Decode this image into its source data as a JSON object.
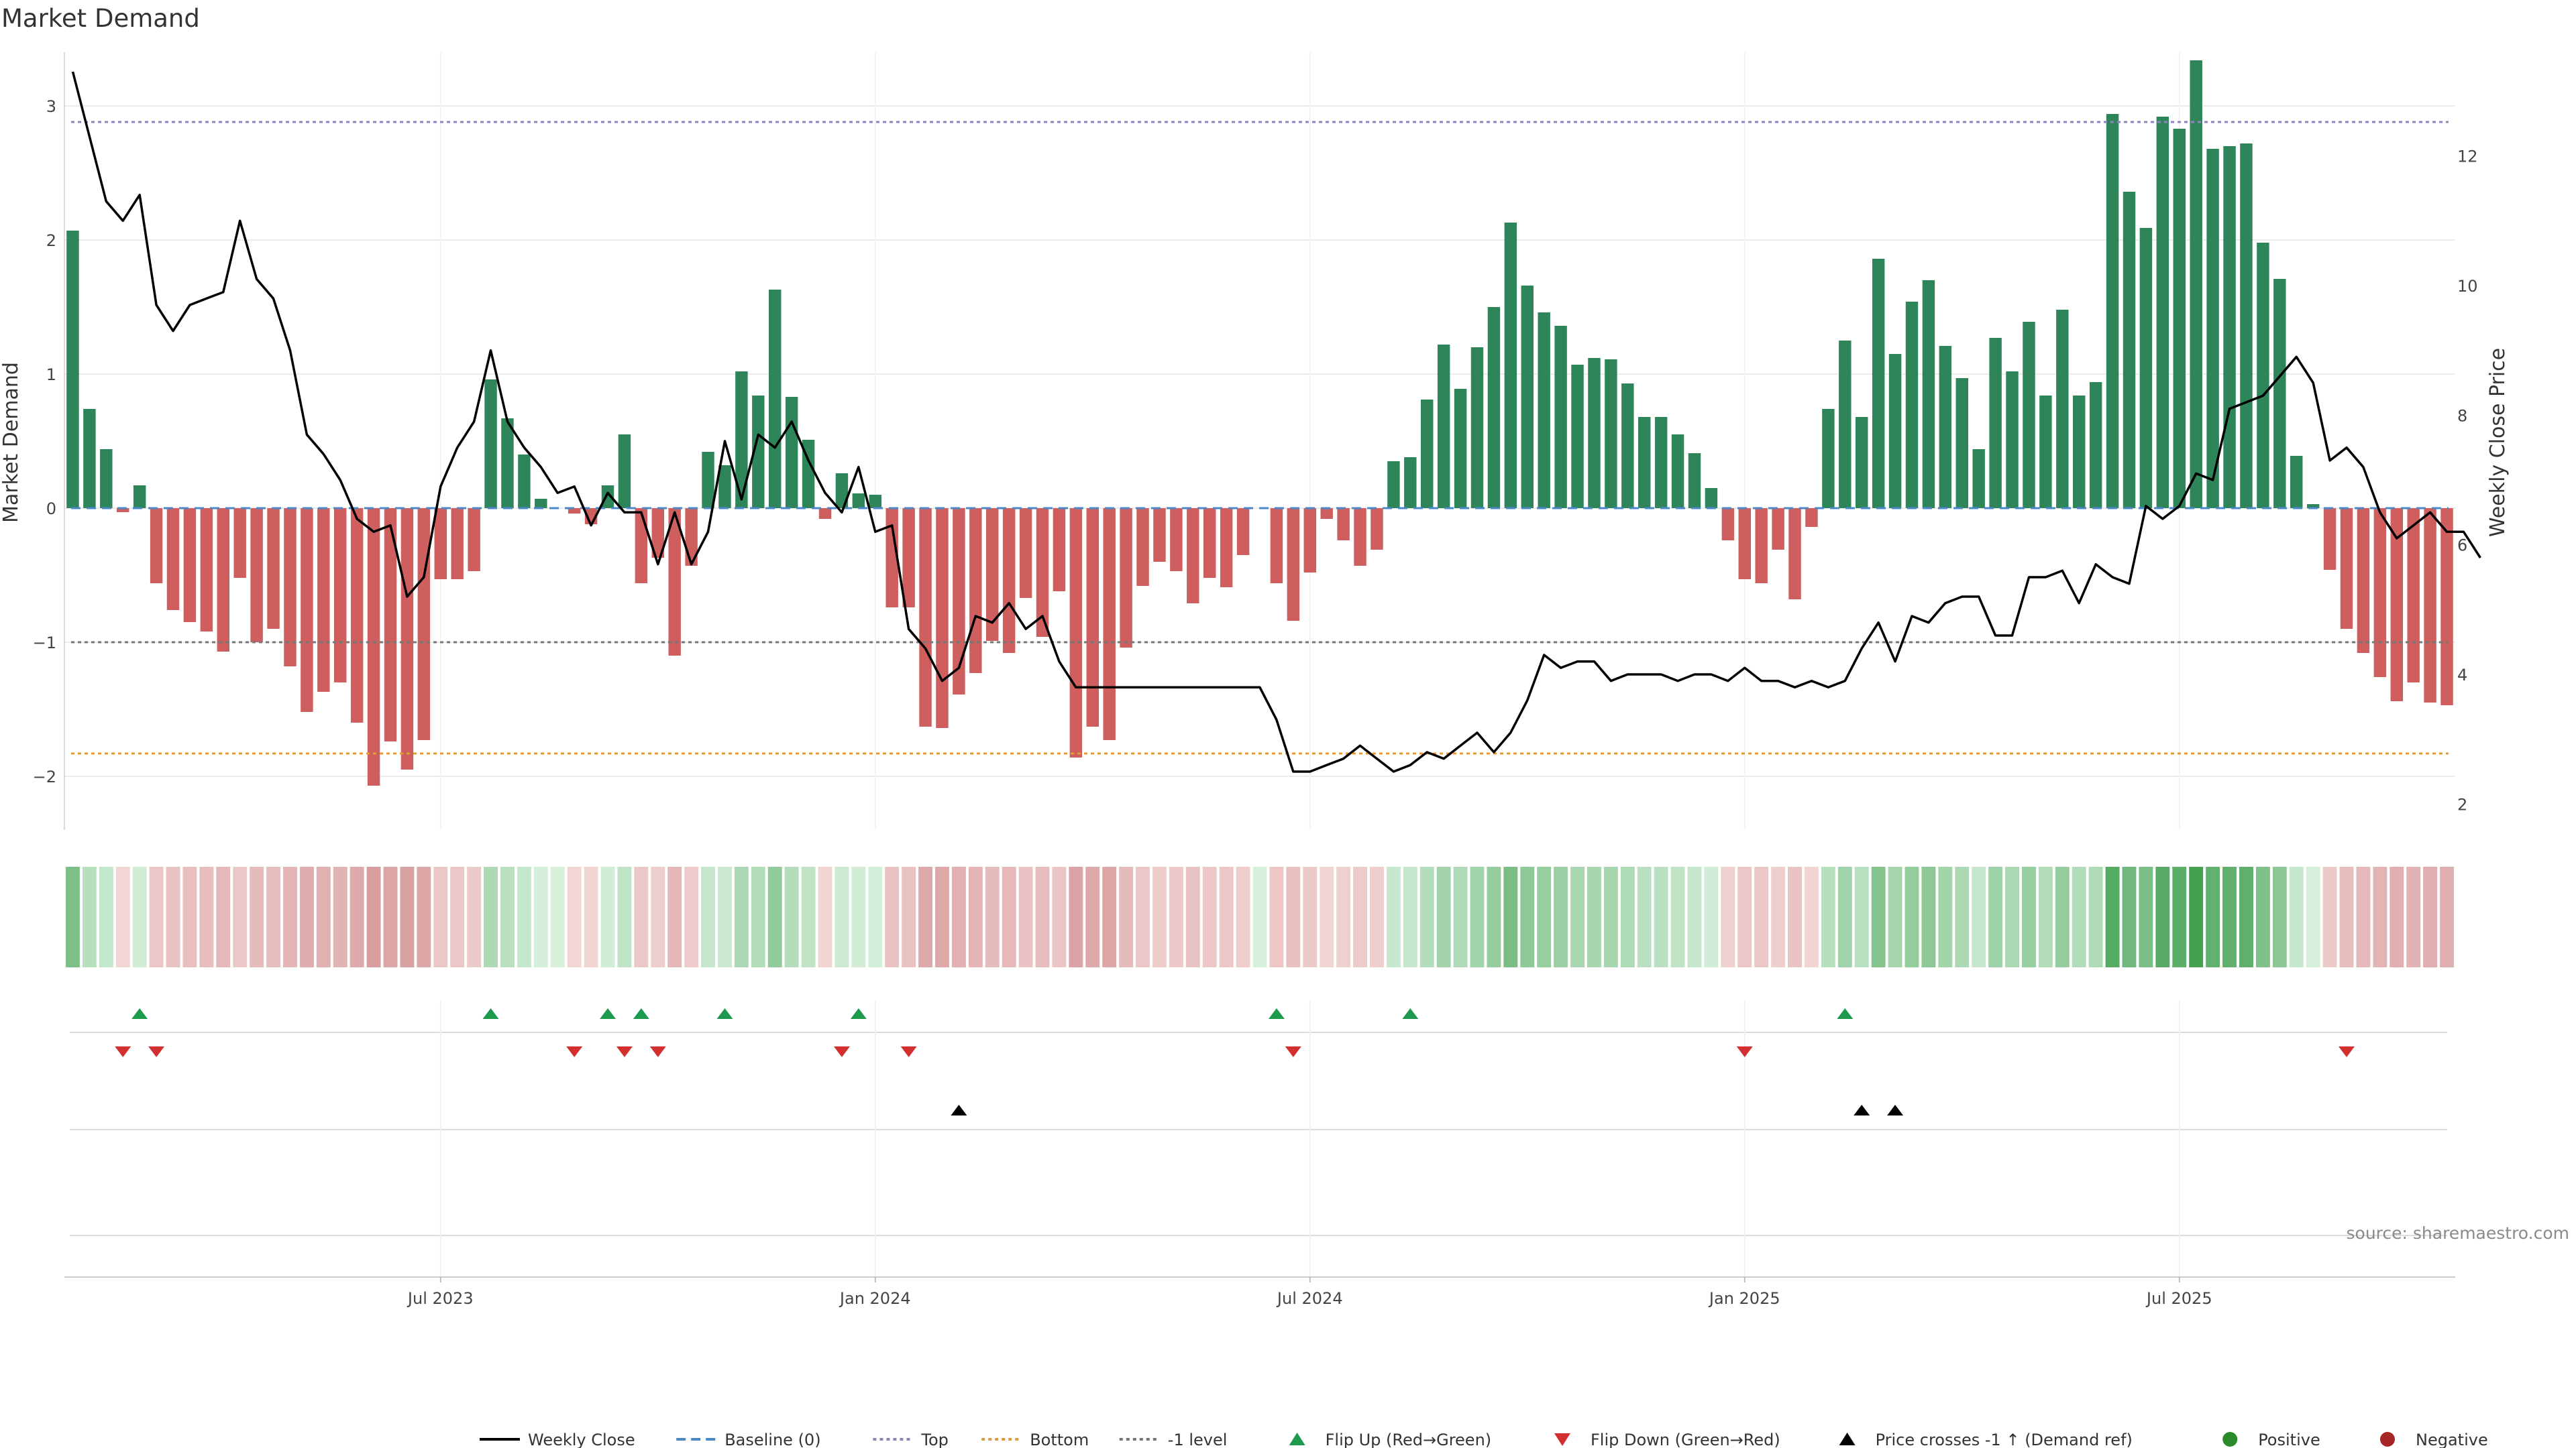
{
  "chart_data": {
    "type": "bar",
    "title": "Market Demand",
    "ylabel": "Market Demand",
    "y2label": "Weekly Close Price",
    "ylim": [
      -2.4,
      3.4
    ],
    "yticks": [
      -2,
      -1,
      0,
      1,
      2,
      3
    ],
    "y2lim": [
      1.6,
      13.6
    ],
    "y2ticks": [
      2,
      4,
      6,
      8,
      10,
      12
    ],
    "xticks": [
      "Jul 2023",
      "Jan 2024",
      "Jul 2024",
      "Jan 2025",
      "Jul 2025"
    ],
    "xtick_index": [
      22,
      48,
      74,
      100,
      126
    ],
    "reference_lines": {
      "top": 2.88,
      "bottom": -1.83,
      "minus_one": -1.0,
      "baseline": 0
    },
    "demand": [
      2.07,
      0.74,
      0.44,
      -0.03,
      0.17,
      -0.56,
      -0.76,
      -0.85,
      -0.92,
      -1.07,
      -0.52,
      -1.0,
      -0.9,
      -1.18,
      -1.52,
      -1.37,
      -1.3,
      -1.6,
      -2.07,
      -1.74,
      -1.95,
      -1.73,
      -0.53,
      -0.53,
      -0.47,
      0.96,
      0.67,
      0.4,
      0.07,
      0,
      -0.04,
      -0.12,
      0.17,
      0.55,
      -0.56,
      -0.37,
      -1.1,
      -0.43,
      0.42,
      0.32,
      1.02,
      0.84,
      1.63,
      0.83,
      0.51,
      -0.08,
      0.26,
      0.11,
      0.1,
      -0.74,
      -0.74,
      -1.63,
      -1.64,
      -1.39,
      -1.23,
      -0.99,
      -1.08,
      -0.67,
      -0.96,
      -0.62,
      -1.86,
      -1.63,
      -1.73,
      -1.04,
      -0.58,
      -0.4,
      -0.47,
      -0.71,
      -0.52,
      -0.59,
      -0.35,
      0,
      -0.56,
      -0.84,
      -0.48,
      -0.08,
      -0.24,
      -0.43,
      -0.31,
      0.35,
      0.38,
      0.81,
      1.22,
      0.89,
      1.2,
      1.5,
      2.13,
      1.66,
      1.46,
      1.36,
      1.07,
      1.12,
      1.11,
      0.93,
      0.68,
      0.68,
      0.55,
      0.41,
      0.15,
      -0.24,
      -0.53,
      -0.56,
      -0.31,
      -0.68,
      -0.14,
      0.74,
      1.25,
      0.68,
      1.86,
      1.15,
      1.54,
      1.7,
      1.21,
      0.97,
      0.44,
      1.27,
      1.02,
      1.39,
      0.84,
      1.48,
      0.84,
      0.94,
      2.94,
      2.36,
      2.09,
      2.92,
      2.83,
      3.34,
      2.68,
      2.7,
      2.72,
      1.98,
      1.71,
      0.39,
      0.03,
      -0.46,
      -0.9,
      -1.08,
      -1.26,
      -1.44,
      -1.3,
      -1.45,
      -1.47
    ],
    "weekly_close": [
      13.3,
      12.3,
      11.3,
      11.0,
      11.4,
      9.7,
      9.3,
      9.7,
      9.8,
      9.9,
      11.0,
      10.1,
      9.8,
      9.0,
      7.7,
      7.4,
      7.0,
      6.4,
      6.2,
      6.3,
      5.2,
      5.5,
      6.9,
      7.5,
      7.9,
      9.0,
      7.9,
      7.5,
      7.2,
      6.8,
      6.9,
      6.3,
      6.8,
      6.5,
      6.5,
      5.7,
      6.5,
      5.7,
      6.2,
      7.6,
      6.7,
      7.7,
      7.5,
      7.9,
      7.3,
      6.8,
      6.5,
      7.2,
      6.2,
      6.3,
      4.7,
      4.4,
      3.9,
      4.1,
      4.9,
      4.8,
      5.1,
      4.7,
      4.9,
      4.2,
      3.8,
      3.8,
      3.8,
      3.8,
      3.8,
      3.8,
      3.8,
      3.8,
      3.8,
      3.8,
      3.8,
      3.8,
      3.3,
      2.5,
      2.5,
      2.6,
      2.7,
      2.9,
      2.7,
      2.5,
      2.6,
      2.8,
      2.7,
      2.9,
      3.1,
      2.8,
      3.1,
      3.6,
      4.3,
      4.1,
      4.2,
      4.2,
      3.9,
      4.0,
      4.0,
      4.0,
      3.9,
      4.0,
      4.0,
      3.9,
      4.1,
      3.9,
      3.9,
      3.8,
      3.9,
      3.8,
      3.9,
      4.4,
      4.8,
      4.2,
      4.9,
      4.8,
      5.1,
      5.2,
      5.2,
      4.6,
      4.6,
      5.5,
      5.5,
      5.6,
      5.1,
      5.7,
      5.5,
      5.4,
      6.6,
      6.4,
      6.6,
      7.1,
      7.0,
      8.1,
      8.2,
      8.3,
      8.6,
      8.9,
      8.5,
      7.3,
      7.5,
      7.2,
      6.5,
      6.1,
      6.3,
      6.5,
      6.2,
      6.2,
      5.8
    ],
    "flip_up": [
      4,
      25,
      32,
      34,
      39,
      47,
      72,
      80,
      106
    ],
    "flip_down": [
      3,
      5,
      30,
      33,
      35,
      46,
      50,
      73,
      100,
      136
    ],
    "price_cross": [
      53,
      107,
      109
    ],
    "legend": [
      {
        "label": "Weekly Close",
        "symbol": "line",
        "color": "#000000"
      },
      {
        "label": "Baseline (0)",
        "symbol": "dash",
        "color": "#4c88c8"
      },
      {
        "label": "Top",
        "symbol": "dot",
        "color": "#8a86b8"
      },
      {
        "label": "Bottom",
        "symbol": "dot",
        "color": "#e39a3b"
      },
      {
        "label": "-1 level",
        "symbol": "dot",
        "color": "#777777"
      },
      {
        "label": "Flip Up (Red→Green)",
        "symbol": "triangle-up",
        "color": "#1e9a4e"
      },
      {
        "label": "Flip Down (Green→Red)",
        "symbol": "triangle-down",
        "color": "#d32f2f"
      },
      {
        "label": "Price crosses -1 ↑ (Demand ref)",
        "symbol": "triangle-up",
        "color": "#000000"
      },
      {
        "label": "Positive",
        "symbol": "circle",
        "color": "#2a8b2a"
      },
      {
        "label": "Negative",
        "symbol": "circle",
        "color": "#a82525"
      }
    ],
    "colors": {
      "positive": "#2e8559",
      "negative": "#cf5e5e"
    }
  },
  "source": "source: sharemaestro.com"
}
